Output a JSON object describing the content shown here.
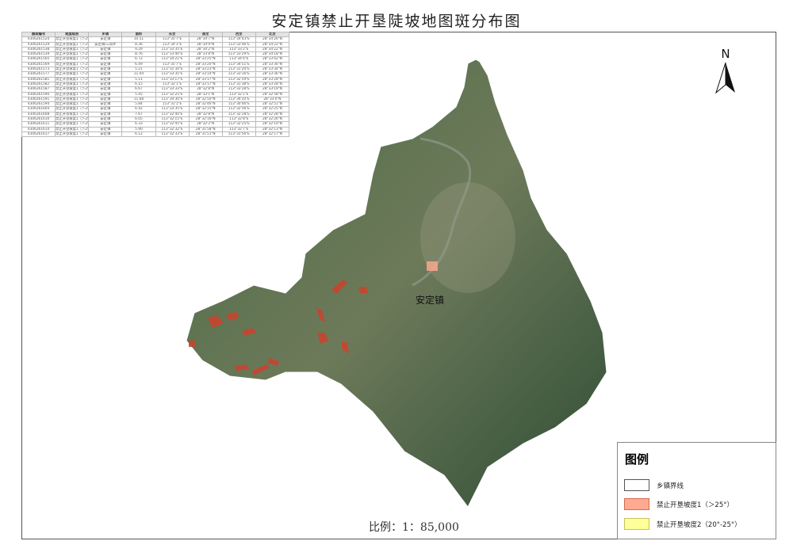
{
  "title": "安定镇禁止开垦陡坡地图斑分布图",
  "north_label": "N",
  "town_label": "安定镇",
  "scale": "比例：1：85,000",
  "colors": {
    "boundary": "#ffffff",
    "slope1": "#ffaa90",
    "slope2": "#ffff99",
    "terrain": "#3d5a3a",
    "patch": "#c8452f"
  },
  "legend": {
    "title": "图例",
    "items": [
      {
        "label": "乡镇界线",
        "color": "#ffffff",
        "border": "#555555"
      },
      {
        "label": "禁止开垦坡度1（＞25°）",
        "color": "#ffaa90",
        "border": "#d46a50"
      },
      {
        "label": "禁止开垦坡度2（20°-25°）",
        "color": "#ffff99",
        "border": "#c8c060"
      }
    ]
  },
  "table": {
    "headers": [
      "图斑编号",
      "坡度级别",
      "乡镇",
      "面积",
      "东至",
      "南至",
      "西至",
      "北至"
    ],
    "rows": [
      [
        "4306261524",
        "禁止开垦坡度1（＞25°）",
        "安定镇",
        "10.51",
        "113°35'7\"E",
        "28°34'7\"N",
        "113°34'43\"E",
        "28°34'26\"N"
      ],
      [
        "4306261529",
        "禁止开垦坡度1（＞25°）",
        "安定镇/三阳乡",
        "8.36",
        "113°34'1\"E",
        "28°34'9\"N",
        "113°33'46\"E",
        "28°34'22\"N"
      ],
      [
        "4306261538",
        "禁止开垦坡度1（＞25°）",
        "安定镇",
        "9.29",
        "113°33'35\"E",
        "28°34'2\"N",
        "113°33'2\"E",
        "28°34'22\"N"
      ],
      [
        "4306261539",
        "禁止开垦坡度1（＞25°）",
        "安定镇",
        "8.76",
        "113°33'40\"E",
        "28°33'8\"N",
        "113°33'29\"E",
        "28°34'18\"N"
      ],
      [
        "4306261565",
        "禁止开垦坡度1（＞25°）",
        "安定镇",
        "6.72",
        "113°34'21\"E",
        "28°33'25\"N",
        "113°34'4\"E",
        "28°33'42\"N"
      ],
      [
        "4306261569",
        "禁止开垦坡度1（＞25°）",
        "安定镇",
        "6.49",
        "113°35'7\"E",
        "28°33'20\"N",
        "113°34'51\"E",
        "28°33'36\"N"
      ],
      [
        "4306261573",
        "禁止开垦坡度1（＞25°）",
        "安定镇",
        "5.21",
        "113°31'34\"E",
        "28°33'23\"N",
        "113°31'20\"E",
        "28°33'34\"N"
      ],
      [
        "4306261577",
        "禁止开垦坡度1（＞25°）",
        "安定镇",
        "11.04",
        "113°33'35\"E",
        "28°33'14\"N",
        "113°33'16\"E",
        "28°33'36\"N"
      ],
      [
        "4306261581",
        "禁止开垦坡度1（＞25°）",
        "安定镇",
        "5.11",
        "113°33'17\"E",
        "28°33'17\"N",
        "113°32'59\"E",
        "28°33'28\"N"
      ],
      [
        "4306261582",
        "禁止开垦坡度1（＞25°）",
        "安定镇",
        "6.15",
        "113°32'1\"E",
        "28°33'17\"N",
        "113°31'38\"E",
        "28°33'28\"N"
      ],
      [
        "4306261587",
        "禁止开垦坡度1（＞25°）",
        "安定镇",
        "6.67",
        "113°33'33\"E",
        "28°32'8\"N",
        "113°33'28\"E",
        "28°33'19\"N"
      ],
      [
        "4306261590",
        "禁止开垦坡度1（＞25°）",
        "安定镇",
        "5.45",
        "113°32'25\"E",
        "28°33'1\"N",
        "113°32'1\"E",
        "28°32'58\"N"
      ],
      [
        "4306261591",
        "禁止开垦坡度1（＞25°）",
        "安定镇",
        "11.68",
        "113°34'30\"E",
        "28°32'50\"N",
        "113°34'20\"E",
        "28°33'0\"N"
      ],
      [
        "4306261594",
        "禁止开垦坡度1（＞25°）",
        "安定镇",
        "5.84",
        "113°31'1\"E",
        "28°32'46\"N",
        "113°30'46\"E",
        "28°32'51\"N"
      ],
      [
        "4306261604",
        "禁止开垦坡度1（＞25°）",
        "安定镇",
        "6.42",
        "113°33'35\"E",
        "28°32'15\"N",
        "113°32'56\"E",
        "28°32'25\"N"
      ],
      [
        "4306261608",
        "禁止开垦坡度1（＞25°）",
        "安定镇",
        "7.67",
        "113°32'40\"E",
        "28°32'8\"N",
        "113°32'28\"E",
        "28°32'28\"N"
      ],
      [
        "4306261610",
        "禁止开垦坡度1（＞25°）",
        "安定镇",
        "6.05",
        "113°32'15\"E",
        "28°32'16\"N",
        "113°32'8\"E",
        "28°32'26\"N"
      ],
      [
        "4306261611",
        "禁止开垦坡度1（＞25°）",
        "安定镇",
        "6.33",
        "113°32'45\"E",
        "28°32'2\"N",
        "113°32'25\"E",
        "28°32'19\"N"
      ],
      [
        "4306261614",
        "禁止开垦坡度1（＞25°）",
        "安定镇",
        "5.90",
        "113°32'32\"E",
        "28°31'58\"N",
        "113°32'7\"E",
        "28°32'13\"N"
      ],
      [
        "4306261617",
        "禁止开垦坡度1（＞25°）",
        "安定镇",
        "6.12",
        "113°32'33\"E",
        "28°31'51\"N",
        "113°31'56\"E",
        "28°32'17\"N"
      ]
    ]
  }
}
